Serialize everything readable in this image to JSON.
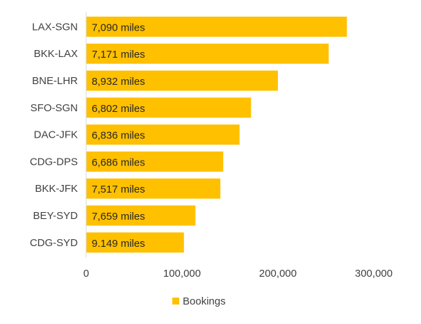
{
  "chart_data": {
    "type": "bar",
    "orientation": "horizontal",
    "categories": [
      "LAX-SGN",
      "BKK-LAX",
      "BNE-LHR",
      "SFO-SGN",
      "DAC-JFK",
      "CDG-DPS",
      "BKK-JFK",
      "BEY-SYD",
      "CDG-SYD"
    ],
    "series": [
      {
        "name": "Bookings",
        "values": [
          272000,
          253000,
          200000,
          172000,
          160000,
          143000,
          140000,
          114000,
          102000
        ],
        "data_labels": [
          "7,090 miles",
          "7,171 miles",
          "8,932 miles",
          "6,802 miles",
          "6,836 miles",
          "6,686 miles",
          "7,517 miles",
          "7,659 miles",
          "9.149 miles"
        ]
      }
    ],
    "xlim": [
      0,
      300000
    ],
    "x_ticks": [
      "0",
      "100,000",
      "200,000",
      "300,000"
    ],
    "grid": false,
    "legend_position": "bottom",
    "colors": {
      "bar": "#FFC000",
      "axis": "#D9D9D9",
      "text": "#404040"
    }
  }
}
